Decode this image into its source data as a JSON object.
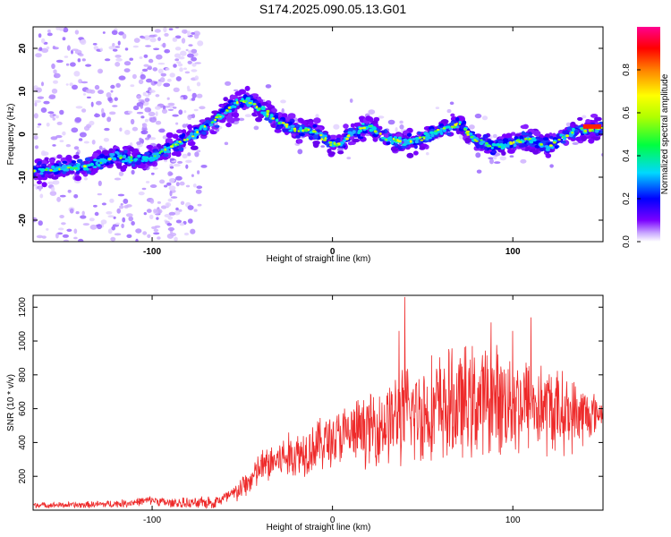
{
  "title": "S174.2025.090.05.13.G01",
  "chart_data": [
    {
      "type": "heatmap",
      "xlabel": "Height of straight line (km)",
      "ylabel": "Frequency (Hz)",
      "xlim": [
        -166,
        150
      ],
      "ylim": [
        -25,
        25
      ],
      "xticks": [
        -100,
        0,
        100
      ],
      "yticks": [
        -20,
        -10,
        0,
        10,
        20
      ],
      "colorbar": {
        "label": "Normalized spectral amplitude",
        "range": [
          0,
          1
        ],
        "ticks": [
          "0.0",
          "0.2",
          "0.4",
          "0.6",
          "0.8"
        ],
        "colors": [
          "#ffffff",
          "#c9a8ff",
          "#7a00ff",
          "#0000ff",
          "#00d8ff",
          "#00ff40",
          "#b0ff00",
          "#ffff00",
          "#ff8000",
          "#ff0000",
          "#ff0090"
        ]
      },
      "ridge": {
        "x": [
          -166,
          -150,
          -135,
          -120,
          -110,
          -100,
          -90,
          -80,
          -70,
          -60,
          -50,
          -45,
          -40,
          -30,
          -20,
          -10,
          0,
          5,
          10,
          20,
          30,
          40,
          50,
          60,
          70,
          80,
          90,
          100,
          110,
          120,
          130,
          140,
          150
        ],
        "y": [
          -8.5,
          -8,
          -7.5,
          -5,
          -6,
          -5.5,
          -3,
          -1,
          2,
          5,
          8,
          7.5,
          6,
          3,
          1,
          0.5,
          -2.5,
          -2,
          0,
          2,
          -1,
          -2,
          -1,
          1,
          2.5,
          -1.5,
          -3,
          -2,
          -1,
          -3,
          0,
          1,
          1.5
        ]
      }
    },
    {
      "type": "line",
      "xlabel": "Height of straight line (km)",
      "ylabel": "SNR (10 * v/v)",
      "xlim": [
        -166,
        150
      ],
      "ylim": [
        0,
        1270
      ],
      "xticks": [
        -100,
        0,
        100
      ],
      "yticks": [
        200,
        400,
        600,
        800,
        1000,
        1200
      ],
      "color": "#ee2a2a",
      "envelope": {
        "x": [
          -166,
          -140,
          -115,
          -100,
          -90,
          -75,
          -65,
          -55,
          -45,
          -40,
          -30,
          -20,
          -10,
          0,
          10,
          20,
          30,
          40,
          50,
          60,
          70,
          80,
          90,
          100,
          110,
          120,
          130,
          140,
          150
        ],
        "y": [
          30,
          30,
          40,
          60,
          40,
          40,
          50,
          90,
          180,
          250,
          300,
          330,
          380,
          420,
          450,
          480,
          520,
          560,
          580,
          600,
          620,
          640,
          650,
          640,
          620,
          600,
          570,
          560,
          580
        ]
      },
      "spread": {
        "x": [
          -166,
          -100,
          -60,
          -40,
          -20,
          0,
          20,
          40,
          60,
          80,
          100,
          120,
          140,
          150
        ],
        "y": [
          15,
          25,
          40,
          100,
          140,
          160,
          200,
          280,
          320,
          320,
          300,
          260,
          180,
          60
        ]
      },
      "peaks": [
        {
          "x": 40,
          "y": 1260
        },
        {
          "x": 37,
          "y": 1060
        },
        {
          "x": 110,
          "y": 1140
        },
        {
          "x": 88,
          "y": 1110
        },
        {
          "x": 100,
          "y": 1060
        }
      ]
    }
  ]
}
